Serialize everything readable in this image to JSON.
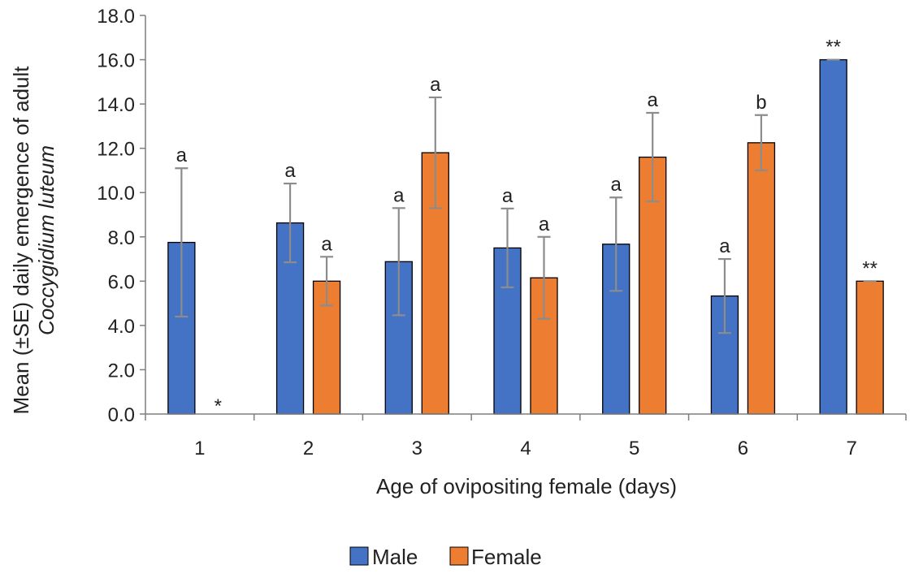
{
  "chart_data": {
    "type": "bar",
    "title": "",
    "xlabel": "Age of ovipositing female (days)",
    "ylabel_line1": "Mean (±SE) daily emergence of adult",
    "ylabel_line2": "Coccygidium luteum",
    "ylim": [
      0,
      18
    ],
    "yticks": [
      "0.0",
      "2.0",
      "4.0",
      "6.0",
      "8.0",
      "10.0",
      "12.0",
      "14.0",
      "16.0",
      "18.0"
    ],
    "categories": [
      "1",
      "2",
      "3",
      "4",
      "5",
      "6",
      "7"
    ],
    "grid": false,
    "legend_position": "bottom",
    "series": [
      {
        "name": "Male",
        "color": "#4472c4",
        "values": [
          7.75,
          8.63,
          6.88,
          7.5,
          7.67,
          5.33,
          16.0
        ],
        "errors": [
          3.35,
          1.78,
          2.42,
          1.78,
          2.11,
          1.67,
          0
        ],
        "labels": [
          "a",
          "a",
          "a",
          "a",
          "a",
          "a",
          "**"
        ]
      },
      {
        "name": "Female",
        "color": "#ed7d31",
        "values": [
          0,
          6.0,
          11.8,
          6.15,
          11.6,
          12.25,
          6.0
        ],
        "errors": [
          0,
          1.1,
          2.5,
          1.85,
          2.0,
          1.25,
          0
        ],
        "labels": [
          "*",
          "a",
          "a",
          "a",
          "a",
          "b",
          "**"
        ]
      }
    ]
  }
}
